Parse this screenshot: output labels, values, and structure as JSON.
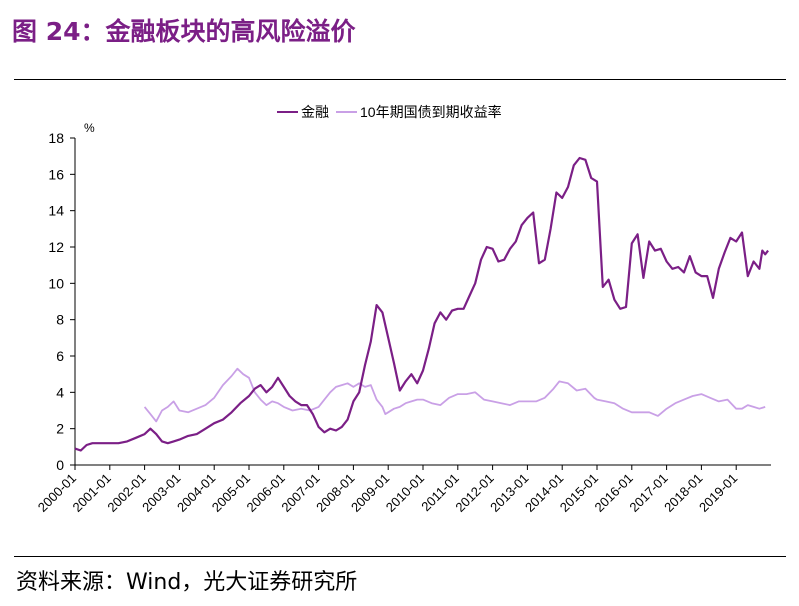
{
  "figure": {
    "title": "图 24：金融板块的高风险溢价",
    "source": "资料来源：Wind，光大证券研究所"
  },
  "colors": {
    "finance": "#7b1f86",
    "bond": "#c9a0e6",
    "title": "#7b1f86"
  },
  "chart_data": {
    "type": "line",
    "ylabel": "%",
    "ylim": [
      0,
      18
    ],
    "yticks": [
      0,
      2,
      4,
      6,
      8,
      10,
      12,
      14,
      16,
      18
    ],
    "xlim": [
      "2000-01",
      "2020-01"
    ],
    "xticks": [
      "2000-01",
      "2001-01",
      "2002-01",
      "2003-01",
      "2004-01",
      "2005-01",
      "2006-01",
      "2007-01",
      "2008-01",
      "2009-01",
      "2010-01",
      "2011-01",
      "2012-01",
      "2013-01",
      "2014-01",
      "2015-01",
      "2016-01",
      "2017-01",
      "2018-01",
      "2019-01"
    ],
    "grid": false,
    "legend_position": "top-center",
    "series": [
      {
        "name": "金融",
        "color": "#7b1f86",
        "points": [
          [
            "2000-01",
            0.9
          ],
          [
            "2000-03",
            0.8
          ],
          [
            "2000-05",
            1.1
          ],
          [
            "2000-07",
            1.2
          ],
          [
            "2000-10",
            1.2
          ],
          [
            "2001-01",
            1.2
          ],
          [
            "2001-04",
            1.2
          ],
          [
            "2001-07",
            1.3
          ],
          [
            "2001-10",
            1.5
          ],
          [
            "2002-01",
            1.7
          ],
          [
            "2002-03",
            2.0
          ],
          [
            "2002-05",
            1.7
          ],
          [
            "2002-07",
            1.3
          ],
          [
            "2002-09",
            1.2
          ],
          [
            "2002-11",
            1.3
          ],
          [
            "2003-01",
            1.4
          ],
          [
            "2003-04",
            1.6
          ],
          [
            "2003-07",
            1.7
          ],
          [
            "2003-10",
            2.0
          ],
          [
            "2004-01",
            2.3
          ],
          [
            "2004-04",
            2.5
          ],
          [
            "2004-07",
            2.9
          ],
          [
            "2004-10",
            3.4
          ],
          [
            "2005-01",
            3.8
          ],
          [
            "2005-03",
            4.2
          ],
          [
            "2005-05",
            4.4
          ],
          [
            "2005-07",
            4.0
          ],
          [
            "2005-09",
            4.3
          ],
          [
            "2005-11",
            4.8
          ],
          [
            "2006-01",
            4.3
          ],
          [
            "2006-03",
            3.8
          ],
          [
            "2006-05",
            3.5
          ],
          [
            "2006-07",
            3.3
          ],
          [
            "2006-09",
            3.3
          ],
          [
            "2006-11",
            2.8
          ],
          [
            "2007-01",
            2.1
          ],
          [
            "2007-03",
            1.8
          ],
          [
            "2007-05",
            2.0
          ],
          [
            "2007-07",
            1.9
          ],
          [
            "2007-09",
            2.1
          ],
          [
            "2007-11",
            2.5
          ],
          [
            "2008-01",
            3.5
          ],
          [
            "2008-03",
            4.0
          ],
          [
            "2008-05",
            5.5
          ],
          [
            "2008-07",
            6.8
          ],
          [
            "2008-09",
            8.8
          ],
          [
            "2008-11",
            8.4
          ],
          [
            "2009-01",
            7.0
          ],
          [
            "2009-03",
            5.6
          ],
          [
            "2009-05",
            4.1
          ],
          [
            "2009-07",
            4.6
          ],
          [
            "2009-09",
            5.0
          ],
          [
            "2009-11",
            4.5
          ],
          [
            "2010-01",
            5.2
          ],
          [
            "2010-03",
            6.4
          ],
          [
            "2010-05",
            7.8
          ],
          [
            "2010-07",
            8.4
          ],
          [
            "2010-09",
            8.0
          ],
          [
            "2010-11",
            8.5
          ],
          [
            "2011-01",
            8.6
          ],
          [
            "2011-03",
            8.6
          ],
          [
            "2011-05",
            9.3
          ],
          [
            "2011-07",
            10.0
          ],
          [
            "2011-09",
            11.3
          ],
          [
            "2011-11",
            12.0
          ],
          [
            "2012-01",
            11.9
          ],
          [
            "2012-03",
            11.2
          ],
          [
            "2012-05",
            11.3
          ],
          [
            "2012-07",
            11.9
          ],
          [
            "2012-09",
            12.3
          ],
          [
            "2012-11",
            13.2
          ],
          [
            "2013-01",
            13.6
          ],
          [
            "2013-03",
            13.9
          ],
          [
            "2013-05",
            11.1
          ],
          [
            "2013-07",
            11.3
          ],
          [
            "2013-09",
            13.0
          ],
          [
            "2013-11",
            15.0
          ],
          [
            "2014-01",
            14.7
          ],
          [
            "2014-03",
            15.3
          ],
          [
            "2014-05",
            16.5
          ],
          [
            "2014-07",
            16.9
          ],
          [
            "2014-09",
            16.8
          ],
          [
            "2014-11",
            15.8
          ],
          [
            "2015-01",
            15.6
          ],
          [
            "2015-03",
            9.8
          ],
          [
            "2015-05",
            10.2
          ],
          [
            "2015-07",
            9.1
          ],
          [
            "2015-09",
            8.6
          ],
          [
            "2015-11",
            8.7
          ],
          [
            "2016-01",
            12.2
          ],
          [
            "2016-03",
            12.7
          ],
          [
            "2016-05",
            10.3
          ],
          [
            "2016-07",
            12.3
          ],
          [
            "2016-09",
            11.8
          ],
          [
            "2016-11",
            11.9
          ],
          [
            "2017-01",
            11.2
          ],
          [
            "2017-03",
            10.8
          ],
          [
            "2017-05",
            10.9
          ],
          [
            "2017-07",
            10.6
          ],
          [
            "2017-09",
            11.5
          ],
          [
            "2017-11",
            10.6
          ],
          [
            "2018-01",
            10.4
          ],
          [
            "2018-03",
            10.4
          ],
          [
            "2018-05",
            9.2
          ],
          [
            "2018-07",
            10.8
          ],
          [
            "2018-09",
            11.7
          ],
          [
            "2018-11",
            12.5
          ],
          [
            "2019-01",
            12.3
          ],
          [
            "2019-03",
            12.8
          ],
          [
            "2019-05",
            10.4
          ],
          [
            "2019-07",
            11.2
          ],
          [
            "2019-09",
            10.8
          ],
          [
            "2019-10",
            11.8
          ],
          [
            "2019-11",
            11.6
          ],
          [
            "2019-12",
            11.8
          ]
        ]
      },
      {
        "name": "10年期国债到期收益率",
        "color": "#c9a0e6",
        "points": [
          [
            "2002-01",
            3.2
          ],
          [
            "2002-03",
            2.8
          ],
          [
            "2002-05",
            2.4
          ],
          [
            "2002-07",
            3.0
          ],
          [
            "2002-09",
            3.2
          ],
          [
            "2002-11",
            3.5
          ],
          [
            "2003-01",
            3.0
          ],
          [
            "2003-04",
            2.9
          ],
          [
            "2003-07",
            3.1
          ],
          [
            "2003-10",
            3.3
          ],
          [
            "2004-01",
            3.7
          ],
          [
            "2004-04",
            4.4
          ],
          [
            "2004-07",
            4.9
          ],
          [
            "2004-09",
            5.3
          ],
          [
            "2004-11",
            5.0
          ],
          [
            "2005-01",
            4.8
          ],
          [
            "2005-03",
            4.0
          ],
          [
            "2005-05",
            3.6
          ],
          [
            "2005-07",
            3.3
          ],
          [
            "2005-09",
            3.5
          ],
          [
            "2005-11",
            3.4
          ],
          [
            "2006-01",
            3.2
          ],
          [
            "2006-04",
            3.0
          ],
          [
            "2006-07",
            3.1
          ],
          [
            "2006-10",
            3.0
          ],
          [
            "2007-01",
            3.2
          ],
          [
            "2007-03",
            3.6
          ],
          [
            "2007-05",
            4.0
          ],
          [
            "2007-07",
            4.3
          ],
          [
            "2007-09",
            4.4
          ],
          [
            "2007-11",
            4.5
          ],
          [
            "2008-01",
            4.3
          ],
          [
            "2008-03",
            4.5
          ],
          [
            "2008-05",
            4.3
          ],
          [
            "2008-07",
            4.4
          ],
          [
            "2008-09",
            3.6
          ],
          [
            "2008-11",
            3.2
          ],
          [
            "2008-12",
            2.8
          ],
          [
            "2009-01",
            2.9
          ],
          [
            "2009-03",
            3.1
          ],
          [
            "2009-05",
            3.2
          ],
          [
            "2009-07",
            3.4
          ],
          [
            "2009-09",
            3.5
          ],
          [
            "2009-11",
            3.6
          ],
          [
            "2010-01",
            3.6
          ],
          [
            "2010-04",
            3.4
          ],
          [
            "2010-07",
            3.3
          ],
          [
            "2010-10",
            3.7
          ],
          [
            "2011-01",
            3.9
          ],
          [
            "2011-04",
            3.9
          ],
          [
            "2011-07",
            4.0
          ],
          [
            "2011-10",
            3.6
          ],
          [
            "2012-01",
            3.5
          ],
          [
            "2012-04",
            3.4
          ],
          [
            "2012-07",
            3.3
          ],
          [
            "2012-10",
            3.5
          ],
          [
            "2013-01",
            3.5
          ],
          [
            "2013-04",
            3.5
          ],
          [
            "2013-07",
            3.7
          ],
          [
            "2013-10",
            4.2
          ],
          [
            "2013-12",
            4.6
          ],
          [
            "2014-03",
            4.5
          ],
          [
            "2014-06",
            4.1
          ],
          [
            "2014-09",
            4.2
          ],
          [
            "2014-12",
            3.7
          ],
          [
            "2015-01",
            3.6
          ],
          [
            "2015-04",
            3.5
          ],
          [
            "2015-07",
            3.4
          ],
          [
            "2015-10",
            3.1
          ],
          [
            "2016-01",
            2.9
          ],
          [
            "2016-04",
            2.9
          ],
          [
            "2016-07",
            2.9
          ],
          [
            "2016-10",
            2.7
          ],
          [
            "2017-01",
            3.1
          ],
          [
            "2017-04",
            3.4
          ],
          [
            "2017-07",
            3.6
          ],
          [
            "2017-10",
            3.8
          ],
          [
            "2018-01",
            3.9
          ],
          [
            "2018-04",
            3.7
          ],
          [
            "2018-07",
            3.5
          ],
          [
            "2018-10",
            3.6
          ],
          [
            "2019-01",
            3.1
          ],
          [
            "2019-03",
            3.1
          ],
          [
            "2019-05",
            3.3
          ],
          [
            "2019-07",
            3.2
          ],
          [
            "2019-09",
            3.1
          ],
          [
            "2019-11",
            3.2
          ]
        ]
      }
    ]
  }
}
